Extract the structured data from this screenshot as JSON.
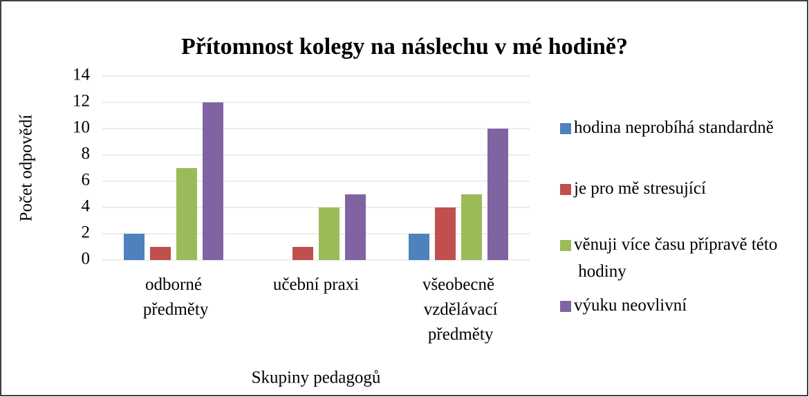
{
  "chart_data": {
    "type": "bar",
    "title": "Přítomnost kolegy na náslechu v mé hodině?",
    "x_label": "Skupiny pedagogů",
    "y_label": "Počet odpovědí",
    "categories": [
      "odborné předměty",
      "učební praxi",
      "všeobecně vzdělávací předměty"
    ],
    "series": [
      {
        "name": "hodina neprobíhá standardně",
        "color": "#4f81bd",
        "values": [
          2,
          0,
          2
        ]
      },
      {
        "name": "je pro mě stresující",
        "color": "#c0504d",
        "values": [
          1,
          1,
          4
        ]
      },
      {
        "name": "věnuji více času přípravě této hodiny",
        "color": "#9bbb59",
        "values": [
          7,
          4,
          5
        ]
      },
      {
        "name": "výuku neovlivní",
        "color": "#8064a2",
        "values": [
          12,
          5,
          10
        ]
      }
    ],
    "ylim": [
      0,
      14
    ],
    "yticks": [
      0,
      2,
      4,
      6,
      8,
      10,
      12,
      14
    ],
    "grid": true,
    "legend": "right"
  }
}
